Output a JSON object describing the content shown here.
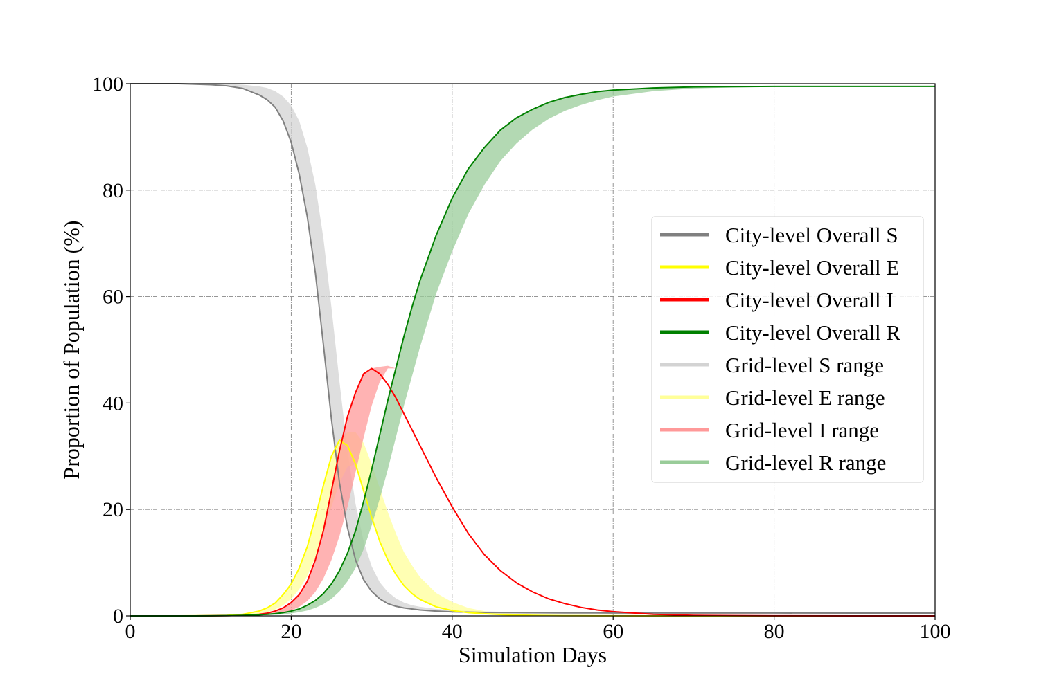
{
  "chart_data": {
    "type": "line",
    "title": "",
    "xlabel": "Simulation Days",
    "ylabel": "Proportion of Population (%)",
    "xlim": [
      0,
      100
    ],
    "ylim": [
      0,
      100
    ],
    "xticks": [
      0,
      20,
      40,
      60,
      80,
      100
    ],
    "yticks": [
      0,
      20,
      40,
      60,
      80,
      100
    ],
    "xtick_labels": [
      "0",
      "20",
      "40",
      "60",
      "80",
      "100"
    ],
    "ytick_labels": [
      "0",
      "20",
      "40",
      "60",
      "80",
      "100"
    ],
    "grid": true,
    "legend_position": "right",
    "x": [
      0,
      2,
      4,
      6,
      8,
      10,
      12,
      14,
      16,
      17,
      18,
      19,
      20,
      21,
      22,
      23,
      24,
      25,
      26,
      27,
      28,
      29,
      30,
      31,
      32,
      33,
      34,
      35,
      36,
      38,
      40,
      42,
      44,
      46,
      48,
      50,
      52,
      54,
      56,
      58,
      60,
      65,
      70,
      75,
      80,
      90,
      100
    ],
    "series": [
      {
        "name": "City-level Overall S",
        "color": "#808080",
        "values": [
          100,
          100,
          100,
          100,
          99.9,
          99.8,
          99.6,
          99.1,
          97.9,
          97.0,
          95.6,
          93.0,
          89.0,
          83.0,
          75.0,
          64.5,
          51.0,
          37.0,
          25.0,
          16.5,
          10.5,
          6.8,
          4.6,
          3.2,
          2.3,
          1.8,
          1.5,
          1.3,
          1.1,
          0.9,
          0.75,
          0.7,
          0.65,
          0.62,
          0.6,
          0.58,
          0.57,
          0.56,
          0.55,
          0.55,
          0.54,
          0.54,
          0.53,
          0.53,
          0.53,
          0.52,
          0.52
        ]
      },
      {
        "name": "City-level Overall E",
        "color": "#ffff00",
        "values": [
          0,
          0,
          0,
          0,
          0.02,
          0.05,
          0.1,
          0.3,
          0.9,
          1.5,
          2.4,
          4.0,
          6.0,
          9.0,
          13.0,
          18.5,
          24.5,
          30.0,
          33.0,
          32.0,
          28.5,
          23.5,
          18.5,
          14.0,
          10.5,
          7.8,
          5.7,
          4.2,
          3.1,
          1.7,
          1.0,
          0.6,
          0.4,
          0.25,
          0.15,
          0.1,
          0.06,
          0.04,
          0.03,
          0.02,
          0.01,
          0.0,
          0.0,
          0.0,
          0.0,
          0.0,
          0.0
        ]
      },
      {
        "name": "City-level Overall I",
        "color": "#ff0000",
        "values": [
          0,
          0,
          0,
          0,
          0,
          0.02,
          0.05,
          0.1,
          0.3,
          0.5,
          0.9,
          1.5,
          2.5,
          4.0,
          6.5,
          10.5,
          16.0,
          23.5,
          31.0,
          37.5,
          42.0,
          45.5,
          46.5,
          45.5,
          43.5,
          41.0,
          38.0,
          35.0,
          32.0,
          26.0,
          20.5,
          15.5,
          11.5,
          8.5,
          6.2,
          4.5,
          3.2,
          2.3,
          1.6,
          1.1,
          0.8,
          0.3,
          0.1,
          0.05,
          0.02,
          0.0,
          0.0
        ]
      },
      {
        "name": "City-level Overall R",
        "color": "#008000",
        "values": [
          0,
          0,
          0,
          0,
          0,
          0.02,
          0.05,
          0.1,
          0.2,
          0.3,
          0.4,
          0.6,
          0.9,
          1.3,
          2.0,
          2.9,
          4.2,
          6.0,
          8.5,
          11.8,
          16.0,
          21.5,
          27.5,
          34.0,
          40.5,
          46.5,
          52.5,
          58.0,
          63.0,
          71.5,
          78.5,
          84.0,
          88.0,
          91.3,
          93.6,
          95.2,
          96.5,
          97.4,
          98.0,
          98.5,
          98.8,
          99.2,
          99.4,
          99.45,
          99.5,
          99.5,
          99.5
        ]
      }
    ],
    "ranges": [
      {
        "name": "Grid-level S range",
        "color": "#d3d3d3",
        "lower": [
          100,
          100,
          100,
          100,
          99.9,
          99.8,
          99.6,
          99.1,
          97.9,
          97.0,
          95.6,
          93.0,
          89.0,
          83.0,
          75.0,
          64.5,
          51.0,
          37.0,
          25.0,
          16.5,
          10.5,
          6.8,
          4.6,
          3.2,
          2.3,
          1.8,
          1.5,
          1.3,
          1.1,
          0.9,
          0.75,
          0.7,
          0.65,
          0.62,
          0.6,
          0.58,
          0.57,
          0.56,
          0.55,
          0.55,
          0.54,
          0.54,
          0.53,
          0.53,
          0.53,
          0.52,
          0.52
        ],
        "upper": [
          100,
          100,
          100,
          100,
          100,
          100,
          99.95,
          99.8,
          99.5,
          99.2,
          98.6,
          97.6,
          95.9,
          93.0,
          88.0,
          81.0,
          71.0,
          58.0,
          44.0,
          31.0,
          21.0,
          14.0,
          9.3,
          6.3,
          4.5,
          3.3,
          2.5,
          2.0,
          1.7,
          1.3,
          1.1,
          0.95,
          0.85,
          0.78,
          0.72,
          0.68,
          0.65,
          0.63,
          0.61,
          0.6,
          0.59,
          0.57,
          0.56,
          0.55,
          0.54,
          0.53,
          0.52
        ]
      },
      {
        "name": "Grid-level E range",
        "color": "#ffff99",
        "lower": [
          0,
          0,
          0,
          0,
          0,
          0.02,
          0.05,
          0.1,
          0.4,
          0.7,
          1.2,
          2.0,
          3.2,
          5.0,
          7.5,
          11.0,
          15.5,
          20.5,
          25.0,
          28.0,
          28.5,
          23.5,
          18.5,
          14.0,
          10.5,
          7.8,
          5.7,
          4.2,
          3.1,
          1.7,
          1.0,
          0.6,
          0.4,
          0.25,
          0.15,
          0.1,
          0.06,
          0.04,
          0.03,
          0.02,
          0.01,
          0.0,
          0.0,
          0.0,
          0.0,
          0.0,
          0.0
        ],
        "upper": [
          0,
          0,
          0,
          0,
          0.02,
          0.05,
          0.1,
          0.3,
          0.9,
          1.5,
          2.4,
          4.0,
          6.0,
          9.0,
          13.0,
          18.5,
          24.5,
          30.0,
          33.0,
          34.5,
          34.5,
          32.5,
          28.5,
          24.0,
          19.5,
          15.5,
          12.0,
          9.5,
          7.3,
          4.3,
          2.6,
          1.5,
          0.9,
          0.55,
          0.35,
          0.22,
          0.14,
          0.09,
          0.06,
          0.04,
          0.03,
          0.01,
          0.0,
          0.0,
          0.0,
          0.0,
          0.0
        ]
      },
      {
        "name": "Grid-level I range",
        "color": "#ff9999",
        "lower": [
          0,
          0,
          0,
          0,
          0,
          0.01,
          0.02,
          0.05,
          0.1,
          0.2,
          0.35,
          0.6,
          1.0,
          1.7,
          2.8,
          4.5,
          7.0,
          10.5,
          15.0,
          20.5,
          27.0,
          33.5,
          39.5,
          44.0,
          46.5,
          46.5,
          44.5,
          42.0,
          39.0,
          33.0,
          27.0,
          21.5,
          17.0,
          13.0,
          10.0,
          7.6,
          5.8,
          4.3,
          3.2,
          2.3,
          1.7,
          0.7,
          0.3,
          0.1,
          0.05,
          0.0,
          0.0
        ],
        "upper": [
          0,
          0,
          0,
          0,
          0,
          0.02,
          0.05,
          0.1,
          0.3,
          0.5,
          0.9,
          1.5,
          2.5,
          4.0,
          6.5,
          10.5,
          16.0,
          23.5,
          31.0,
          37.5,
          42.0,
          45.5,
          46.5,
          46.8,
          47.0,
          46.5,
          44.5,
          42.0,
          39.0,
          33.0,
          27.0,
          21.5,
          17.0,
          13.0,
          10.0,
          7.6,
          5.8,
          4.3,
          3.2,
          2.3,
          1.7,
          0.7,
          0.3,
          0.1,
          0.05,
          0.0,
          0.0
        ]
      },
      {
        "name": "Grid-level R range",
        "color": "#99cc99",
        "lower": [
          0,
          0,
          0,
          0,
          0,
          0.01,
          0.02,
          0.05,
          0.1,
          0.15,
          0.2,
          0.3,
          0.45,
          0.7,
          1.0,
          1.5,
          2.2,
          3.2,
          4.6,
          6.5,
          9.0,
          12.5,
          17.0,
          22.0,
          27.5,
          33.5,
          39.5,
          45.0,
          50.5,
          60.5,
          68.5,
          75.5,
          81.0,
          85.5,
          88.8,
          91.4,
          93.4,
          94.9,
          96.0,
          96.9,
          97.6,
          98.6,
          99.1,
          99.3,
          99.4,
          99.5,
          99.5
        ],
        "upper": [
          0,
          0,
          0,
          0,
          0,
          0.02,
          0.05,
          0.1,
          0.2,
          0.3,
          0.4,
          0.6,
          0.9,
          1.3,
          2.0,
          2.9,
          4.2,
          6.0,
          8.5,
          11.8,
          16.0,
          21.5,
          27.5,
          34.0,
          40.5,
          46.5,
          52.5,
          58.0,
          63.0,
          71.5,
          78.5,
          84.0,
          88.0,
          91.3,
          93.6,
          95.2,
          96.5,
          97.4,
          98.0,
          98.5,
          98.8,
          99.2,
          99.4,
          99.45,
          99.5,
          99.5,
          99.5
        ]
      }
    ],
    "legend": [
      {
        "label": "City-level Overall S",
        "color": "#808080",
        "opacity": 1
      },
      {
        "label": "City-level Overall E",
        "color": "#ffff00",
        "opacity": 1
      },
      {
        "label": "City-level Overall I",
        "color": "#ff0000",
        "opacity": 1
      },
      {
        "label": "City-level Overall R",
        "color": "#008000",
        "opacity": 1
      },
      {
        "label": "Grid-level S range",
        "color": "#d3d3d3",
        "opacity": 1
      },
      {
        "label": "Grid-level E range",
        "color": "#ffff99",
        "opacity": 1
      },
      {
        "label": "Grid-level I range",
        "color": "#ff9999",
        "opacity": 1
      },
      {
        "label": "Grid-level R range",
        "color": "#99cc99",
        "opacity": 1
      }
    ]
  }
}
